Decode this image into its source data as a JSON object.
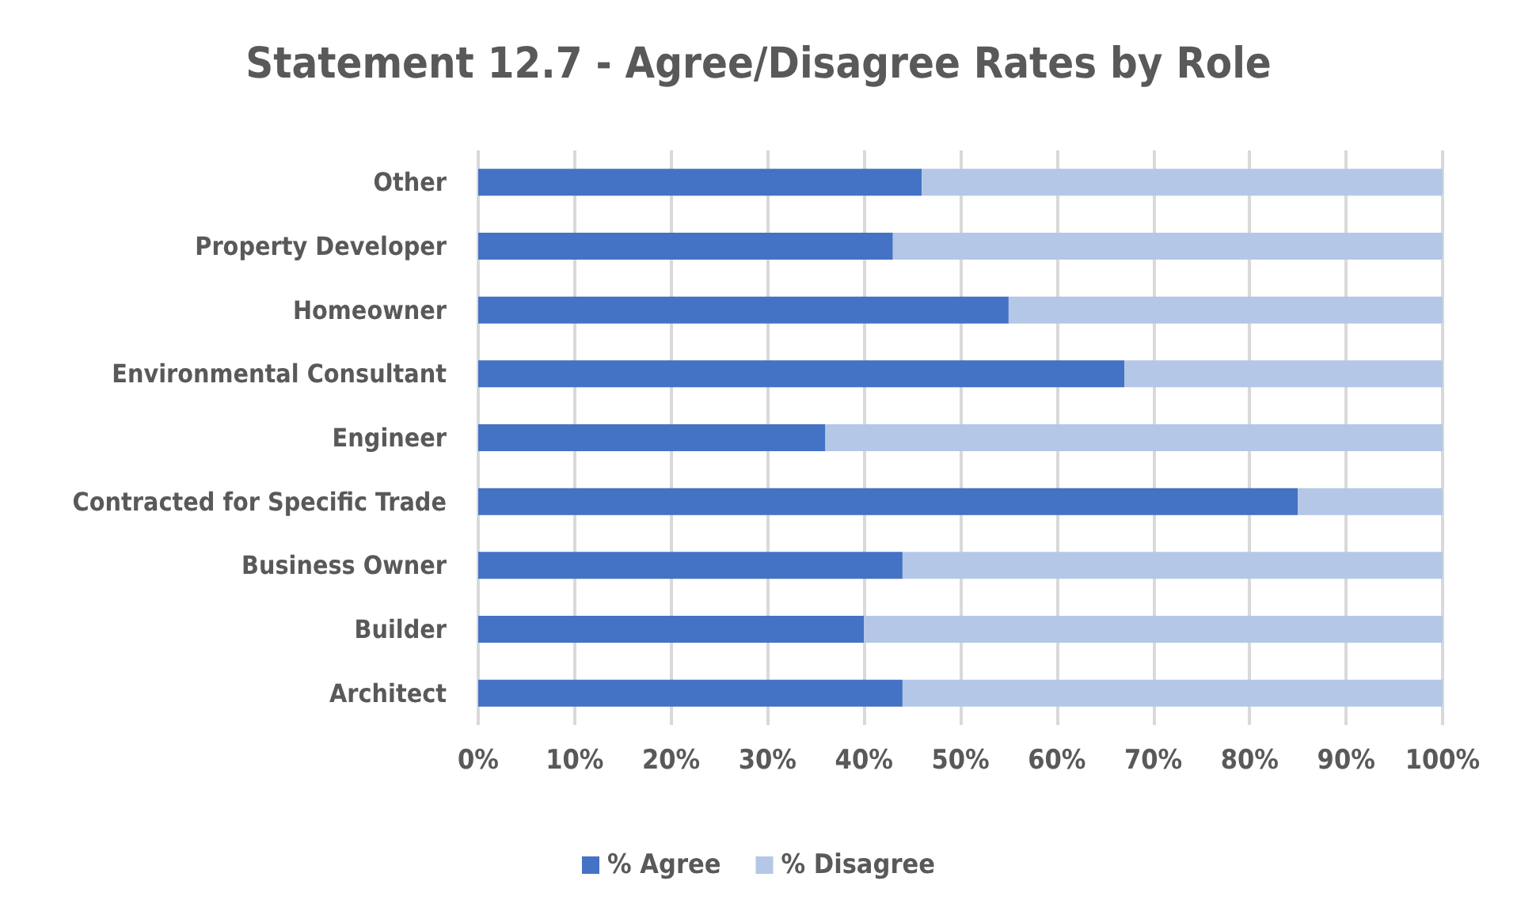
{
  "chart_data": {
    "type": "bar",
    "title": "Statement 12.7 - Agree/Disagree Rates by Role",
    "orientation": "horizontal",
    "stacked": true,
    "categories": [
      "Other",
      "Property Developer",
      "Homeowner",
      "Environmental Consultant",
      "Engineer",
      "Contracted for Specific Trade",
      "Business Owner",
      "Builder",
      "Architect"
    ],
    "series": [
      {
        "name": "% Agree",
        "color": "#4472c4",
        "values": [
          46,
          43,
          55,
          67,
          36,
          85,
          44,
          40,
          44
        ]
      },
      {
        "name": "% Disagree",
        "color": "#b4c7e7",
        "values": [
          54,
          57,
          45,
          33,
          64,
          15,
          56,
          60,
          56
        ]
      }
    ],
    "xlim": [
      0,
      100
    ],
    "xticks": [
      {
        "value": 0,
        "label": "0%"
      },
      {
        "value": 10,
        "label": "10%"
      },
      {
        "value": 20,
        "label": "20%"
      },
      {
        "value": 30,
        "label": "30%"
      },
      {
        "value": 40,
        "label": "40%"
      },
      {
        "value": 50,
        "label": "50%"
      },
      {
        "value": 60,
        "label": "60%"
      },
      {
        "value": 70,
        "label": "70%"
      },
      {
        "value": 80,
        "label": "80%"
      },
      {
        "value": 90,
        "label": "90%"
      },
      {
        "value": 100,
        "label": "100%"
      }
    ],
    "grid": "x",
    "legend": "bottom"
  }
}
